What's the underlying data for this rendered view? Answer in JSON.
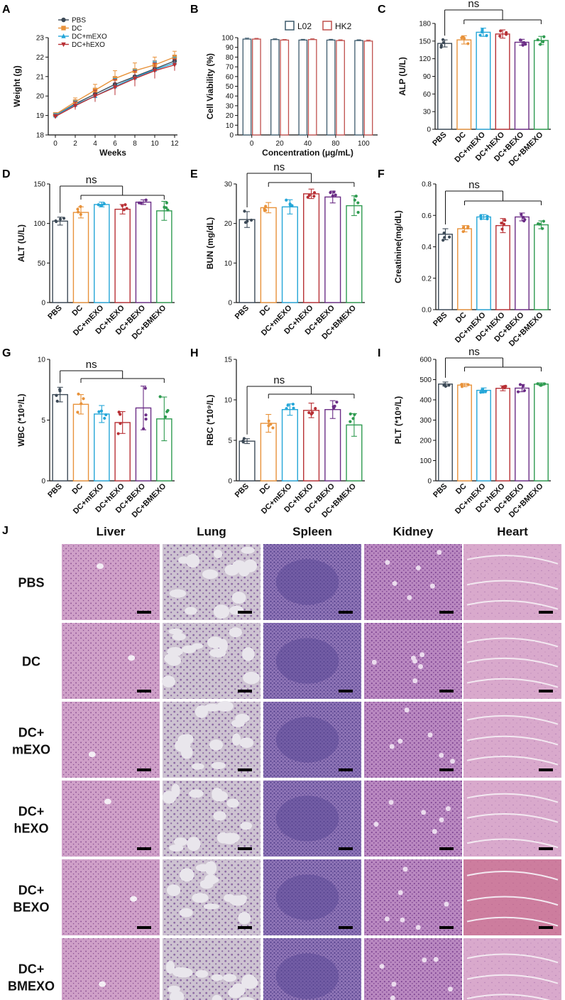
{
  "panel_letters": [
    "A",
    "B",
    "C",
    "D",
    "E",
    "F",
    "G",
    "H",
    "I",
    "J"
  ],
  "group_colors": {
    "PBS": "#3d4a57",
    "DC": "#e8923a",
    "DC+mEXO": "#24a6d8",
    "DC+hEXO": "#b83035",
    "DC+BEXO": "#6b2d86",
    "DC+BMEXO": "#2e9b50"
  },
  "histology_colors": {
    "liver": "#cfa0c8",
    "lung": "#cdc3d1",
    "spleen": "#8e74b6",
    "kidney": "#b988c0",
    "heart": "#d9a9cc",
    "heart_red": "#c25a78"
  },
  "histology": {
    "columns": [
      "Liver",
      "Lung",
      "Spleen",
      "Kidney",
      "Heart"
    ],
    "rows": [
      {
        "line1": "PBS",
        "line2": ""
      },
      {
        "line1": "DC",
        "line2": ""
      },
      {
        "line1": "DC+",
        "line2": "mEXO"
      },
      {
        "line1": "DC+",
        "line2": "hEXO"
      },
      {
        "line1": "DC+",
        "line2": "BEXO"
      },
      {
        "line1": "DC+",
        "line2": "BMEXO"
      }
    ]
  },
  "chart_data": [
    {
      "id": "A",
      "type": "line",
      "xlabel": "Weeks",
      "ylabel": "Weight (g)",
      "x": [
        0,
        2,
        4,
        6,
        8,
        10,
        12
      ],
      "xticks": [
        "0",
        "2",
        "4",
        "6",
        "8",
        "10",
        "12"
      ],
      "ylim": [
        18,
        23
      ],
      "yticks": [
        "18",
        "19",
        "20",
        "21",
        "22",
        "23"
      ],
      "legend_position": "top-left",
      "series": [
        {
          "name": "PBS",
          "color": "#3d4a57",
          "marker": "circle",
          "values": [
            19.0,
            19.6,
            20.1,
            20.6,
            21.0,
            21.4,
            21.8
          ],
          "err": [
            0.1,
            0.2,
            0.3,
            0.4,
            0.4,
            0.4,
            0.3
          ]
        },
        {
          "name": "DC",
          "color": "#e8923a",
          "marker": "square",
          "values": [
            19.05,
            19.7,
            20.3,
            20.9,
            21.3,
            21.6,
            22.0
          ],
          "err": [
            0.1,
            0.2,
            0.3,
            0.4,
            0.4,
            0.4,
            0.3
          ]
        },
        {
          "name": "DC+mEXO",
          "color": "#24a6d8",
          "marker": "triangle-up",
          "values": [
            19.0,
            19.55,
            20.0,
            20.5,
            20.95,
            21.35,
            21.7
          ],
          "err": [
            0.1,
            0.2,
            0.3,
            0.4,
            0.4,
            0.4,
            0.3
          ]
        },
        {
          "name": "DC+hEXO",
          "color": "#b83035",
          "marker": "triangle-down",
          "values": [
            18.95,
            19.5,
            20.0,
            20.45,
            20.9,
            21.3,
            21.6
          ],
          "err": [
            0.1,
            0.2,
            0.3,
            0.4,
            0.4,
            0.4,
            0.3
          ]
        }
      ]
    },
    {
      "id": "B",
      "type": "bar",
      "xlabel": "Concentration (μg/mL)",
      "ylabel": "Cell Viability (%)",
      "categories": [
        "0",
        "20",
        "40",
        "80",
        "100"
      ],
      "ylim": [
        0,
        100
      ],
      "yticks": [
        "0",
        "10",
        "20",
        "30",
        "40",
        "50",
        "60",
        "70",
        "80",
        "90",
        "100"
      ],
      "legend_position": "top",
      "series": [
        {
          "name": "L02",
          "color": "#3d5a6c",
          "values": [
            98.5,
            98.0,
            97.5,
            97.5,
            97.0
          ],
          "err": [
            1.0,
            0.8,
            0.8,
            0.8,
            0.8
          ]
        },
        {
          "name": "HK2",
          "color": "#c0504d",
          "values": [
            98.5,
            97.5,
            98.0,
            97.0,
            96.5
          ],
          "err": [
            0.8,
            0.6,
            0.8,
            0.8,
            1.0
          ]
        }
      ]
    },
    {
      "id": "C",
      "type": "bar",
      "ylabel": "ALP (U/L)",
      "categories": [
        "PBS",
        "DC",
        "DC+mEXO",
        "DC+hEXO",
        "DC+BEXO",
        "DC+BMEXO"
      ],
      "values": [
        146,
        152,
        165,
        162,
        148,
        151
      ],
      "err": [
        6,
        7,
        7,
        7,
        5,
        7
      ],
      "ylim": [
        0,
        180
      ],
      "yticks": [
        "0",
        "30",
        "60",
        "90",
        "120",
        "150",
        "180"
      ],
      "annotation": "ns"
    },
    {
      "id": "D",
      "type": "bar",
      "ylabel": "ALT (U/L)",
      "categories": [
        "PBS",
        "DC",
        "DC+mEXO",
        "DC+hEXO",
        "DC+BEXO",
        "DC+BMEXO"
      ],
      "values": [
        103,
        114,
        124,
        118,
        127,
        116
      ],
      "err": [
        5,
        7,
        3,
        6,
        3,
        12
      ],
      "ylim": [
        0,
        150
      ],
      "yticks": [
        "0",
        "50",
        "100",
        "150"
      ],
      "annotation": "ns"
    },
    {
      "id": "E",
      "type": "bar",
      "ylabel": "BUN (mg/dL)",
      "categories": [
        "PBS",
        "DC",
        "DC+mEXO",
        "DC+hEXO",
        "DC+BEXO",
        "DC+BMEXO"
      ],
      "values": [
        21,
        24,
        24.2,
        27.5,
        26.7,
        24.5
      ],
      "err": [
        2.0,
        1.3,
        1.8,
        1.2,
        1.5,
        2.5
      ],
      "ylim": [
        0,
        30
      ],
      "yticks": [
        "0",
        "10",
        "20",
        "30"
      ],
      "annotation": "ns"
    },
    {
      "id": "F",
      "type": "bar",
      "ylabel": "Creatinine(mg/dL)",
      "categories": [
        "PBS",
        "DC",
        "DC+mEXO",
        "DC+hEXO",
        "DC+BEXO",
        "DC+BMEXO"
      ],
      "values": [
        0.48,
        0.515,
        0.59,
        0.535,
        0.59,
        0.54
      ],
      "err": [
        0.035,
        0.02,
        0.015,
        0.045,
        0.025,
        0.025
      ],
      "ylim": [
        0,
        0.8
      ],
      "yticks": [
        "0.0",
        "0.2",
        "0.4",
        "0.6",
        "0.8"
      ],
      "annotation": "ns"
    },
    {
      "id": "G",
      "type": "bar",
      "ylabel": "WBC (*10⁹/L)",
      "categories": [
        "PBS",
        "DC",
        "DC+mEXO",
        "DC+hEXO",
        "DC+BEXO",
        "DC+BMEXO"
      ],
      "values": [
        7.1,
        6.3,
        5.5,
        4.8,
        6.0,
        5.1
      ],
      "err": [
        0.6,
        0.8,
        0.7,
        0.9,
        1.8,
        1.8
      ],
      "ylim": [
        0,
        10
      ],
      "yticks": [
        "0",
        "5",
        "10"
      ],
      "annotation": "ns"
    },
    {
      "id": "H",
      "type": "bar",
      "ylabel": "RBC (*10⁹/L)",
      "categories": [
        "PBS",
        "DC",
        "DC+mEXO",
        "DC+hEXO",
        "DC+BEXO",
        "DC+BMEXO"
      ],
      "values": [
        4.9,
        7.1,
        8.8,
        8.7,
        8.8,
        6.9
      ],
      "err": [
        0.3,
        1.1,
        0.7,
        0.9,
        1.1,
        1.4
      ],
      "ylim": [
        0,
        15
      ],
      "yticks": [
        "0",
        "5",
        "10",
        "15"
      ],
      "annotation": "ns"
    },
    {
      "id": "I",
      "type": "bar",
      "ylabel": "PLT (*10⁹/L)",
      "categories": [
        "PBS",
        "DC",
        "DC+mEXO",
        "DC+hEXO",
        "DC+BEXO",
        "DC+BMEXO"
      ],
      "values": [
        478,
        473,
        447,
        457,
        458,
        478
      ],
      "err": [
        10,
        8,
        12,
        12,
        18,
        6
      ],
      "ylim": [
        0,
        600
      ],
      "yticks": [
        "0",
        "100",
        "200",
        "300",
        "400",
        "500",
        "600"
      ],
      "annotation": "ns"
    }
  ]
}
